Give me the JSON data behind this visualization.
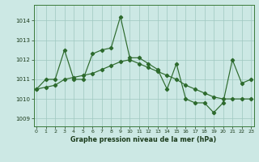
{
  "hours": [
    0,
    1,
    2,
    3,
    4,
    5,
    6,
    7,
    8,
    9,
    10,
    11,
    12,
    13,
    14,
    15,
    16,
    17,
    18,
    19,
    20,
    21,
    22,
    23
  ],
  "pressure_jagged": [
    1010.5,
    1011.0,
    1011.0,
    1012.5,
    1011.0,
    1011.0,
    1012.3,
    1012.5,
    1012.6,
    1014.2,
    1012.1,
    1012.1,
    1011.8,
    1011.5,
    1010.5,
    1011.8,
    1010.0,
    1009.8,
    1009.8,
    1009.3,
    1009.8,
    1012.0,
    1010.8,
    1011.0
  ],
  "pressure_smooth": [
    1010.5,
    1010.6,
    1010.7,
    1011.0,
    1011.1,
    1011.2,
    1011.3,
    1011.5,
    1011.7,
    1011.9,
    1012.0,
    1011.8,
    1011.6,
    1011.4,
    1011.2,
    1011.0,
    1010.7,
    1010.5,
    1010.3,
    1010.1,
    1010.0,
    1010.0,
    1010.0,
    1010.0
  ],
  "line_color": "#2d6a2d",
  "bg_color": "#cce8e4",
  "grid_color": "#9fc8c0",
  "xlabel": "Graphe pression niveau de la mer (hPa)",
  "ylabel_ticks": [
    1009,
    1010,
    1011,
    1012,
    1013,
    1014
  ],
  "ylim": [
    1008.6,
    1014.8
  ],
  "xlim": [
    -0.3,
    23.3
  ],
  "marker": "D",
  "markersize": 2.2,
  "linewidth": 0.85,
  "fontsize_tick": 4.5,
  "fontsize_xlabel": 5.8
}
